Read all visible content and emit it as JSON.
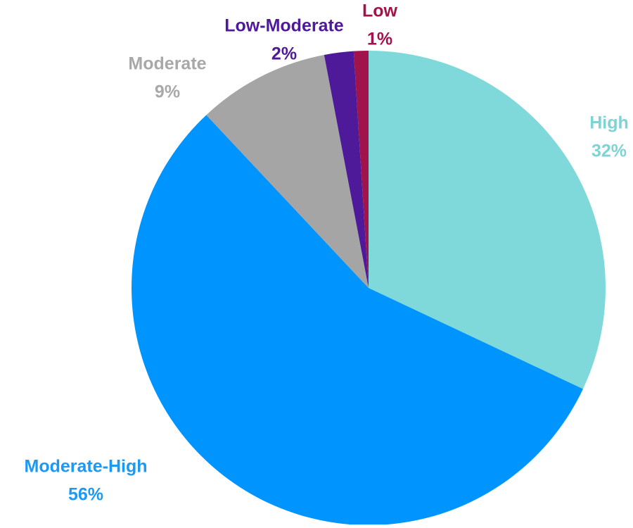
{
  "chart_data": {
    "type": "pie",
    "title": "",
    "start": "top",
    "direction": "clockwise",
    "slices": [
      {
        "label": "High",
        "value": 32,
        "value_label": "32%",
        "color": "#7fd9da",
        "label_color": "#7fd3d4"
      },
      {
        "label": "Moderate-High",
        "value": 56,
        "value_label": "56%",
        "color": "#0095fe",
        "label_color": "#1a99f5"
      },
      {
        "label": "Moderate",
        "value": 9,
        "value_label": "9%",
        "color": "#a5a5a5",
        "label_color": "#a8a8a8"
      },
      {
        "label": "Low-Moderate",
        "value": 2,
        "value_label": "2%",
        "color": "#4e1a9a",
        "label_color": "#4e1a9a"
      },
      {
        "label": "Low",
        "value": 1,
        "value_label": "1%",
        "color": "#a0144b",
        "label_color": "#a0144b"
      }
    ]
  }
}
